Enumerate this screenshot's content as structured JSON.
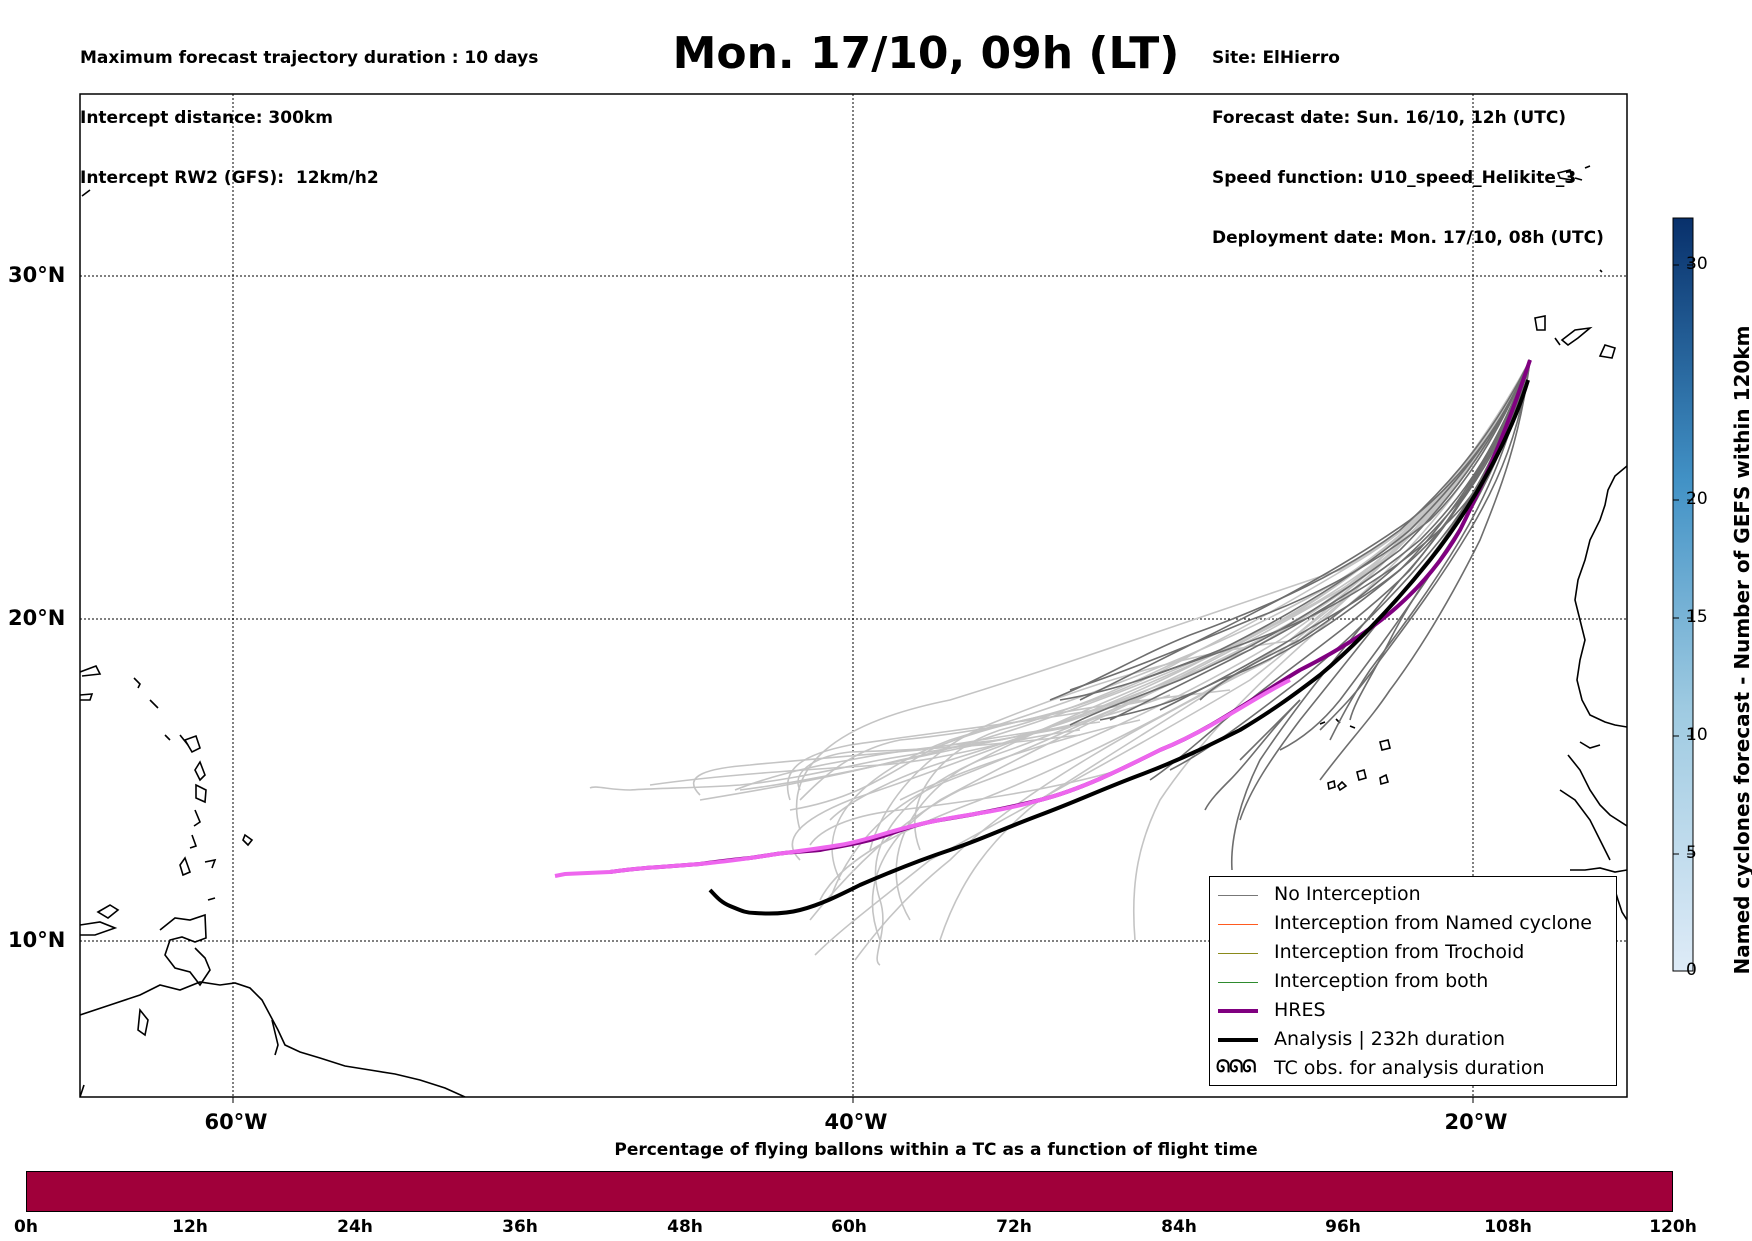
{
  "header": {
    "left_lines": [
      "Maximum forecast trajectory duration : 10 days",
      "Intercept distance: 300km",
      "Intercept RW2 (GFS):  12km/h2"
    ],
    "title": "Mon. 17/10, 09h (LT)",
    "right_lines": [
      "Site: ElHierro",
      "Forecast date: Sun. 16/10, 12h (UTC)",
      "Speed function: U10_speed_Helikite_3",
      "Deployment date: Mon. 17/10, 08h (UTC)"
    ]
  },
  "axes": {
    "lat_labels": [
      "30°N",
      "20°N",
      "10°N"
    ],
    "lon_labels": [
      "60°W",
      "40°W",
      "20°W"
    ]
  },
  "legend": {
    "items": [
      {
        "label": "No Interception",
        "color": "#777777"
      },
      {
        "label": "Interception from Named cyclone",
        "color": "#ff5a1f"
      },
      {
        "label": "Interception from Trochoid",
        "color": "#8a8a1a"
      },
      {
        "label": "Interception from both",
        "color": "#2e8b2e"
      },
      {
        "label": "HRES",
        "color": "#800080"
      },
      {
        "label": "Analysis | 232h duration",
        "color": "#000000"
      },
      {
        "label": "TC obs. for analysis duration",
        "color": "#000000"
      }
    ],
    "tc_symbol": "ᘏᘏᘏ"
  },
  "colorbar": {
    "label": "Named cyclones forecast - Number of GEFS within 120km",
    "ticks": [
      "0",
      "5",
      "10",
      "15",
      "20",
      "30"
    ],
    "dark": "#08306b",
    "light": "#deebf7"
  },
  "percentage_bar": {
    "title": "Percentage of flying ballons within a TC as a function of flight time",
    "fill_color": "#a0003a",
    "fill_fraction": 1.0,
    "ticks": [
      "0h",
      "12h",
      "24h",
      "36h",
      "48h",
      "60h",
      "72h",
      "84h",
      "96h",
      "108h",
      "120h"
    ]
  }
}
